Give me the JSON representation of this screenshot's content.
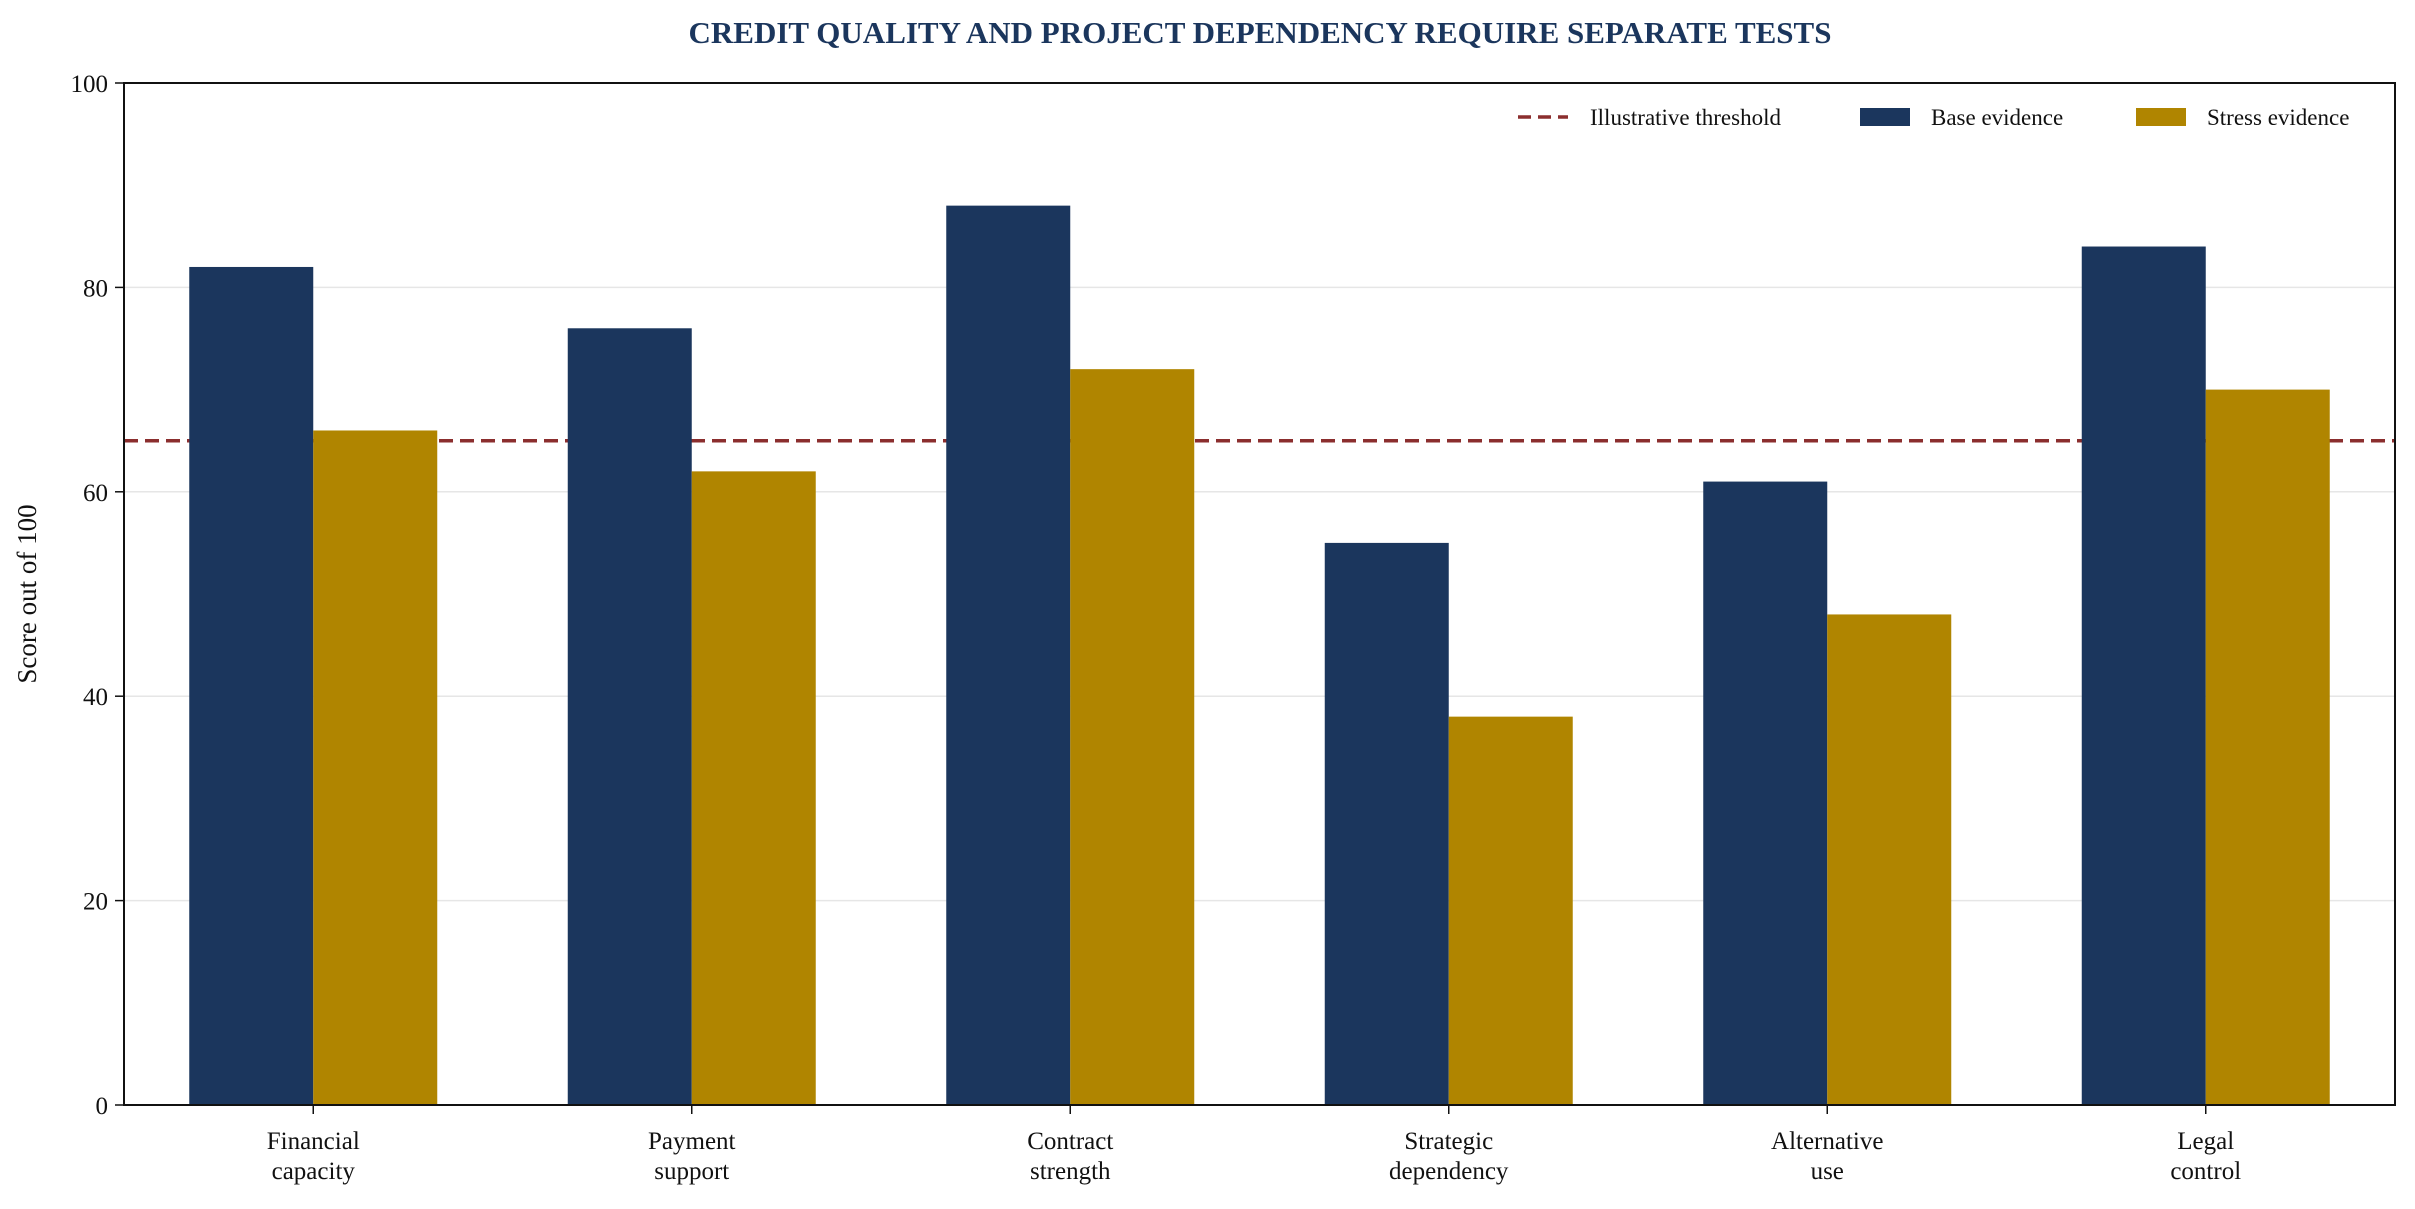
{
  "chart_data": {
    "type": "bar",
    "title": "CREDIT QUALITY AND PROJECT DEPENDENCY REQUIRE SEPARATE TESTS",
    "xlabel": "",
    "ylabel": "Score out of 100",
    "ylim": [
      0,
      100
    ],
    "yticks": [
      0,
      20,
      40,
      60,
      80,
      100
    ],
    "ytick_labels": [
      "0",
      "20",
      "40",
      "60",
      "80",
      "100"
    ],
    "categories": [
      [
        "Financial",
        "capacity"
      ],
      [
        "Payment",
        "support"
      ],
      [
        "Contract",
        "strength"
      ],
      [
        "Strategic",
        "dependency"
      ],
      [
        "Alternative",
        "use"
      ],
      [
        "Legal",
        "control"
      ]
    ],
    "series": [
      {
        "name": "Base evidence",
        "color": "#1b365d",
        "values": [
          82,
          76,
          88,
          55,
          61,
          84
        ]
      },
      {
        "name": "Stress evidence",
        "color": "#b08500",
        "values": [
          66,
          62,
          72,
          38,
          48,
          70
        ]
      }
    ],
    "threshold": {
      "name": "Illustrative threshold",
      "value": 65,
      "color": "#8b2e2e",
      "style": "dashed"
    },
    "grid": "horizontal",
    "legend_position": "top-right"
  }
}
